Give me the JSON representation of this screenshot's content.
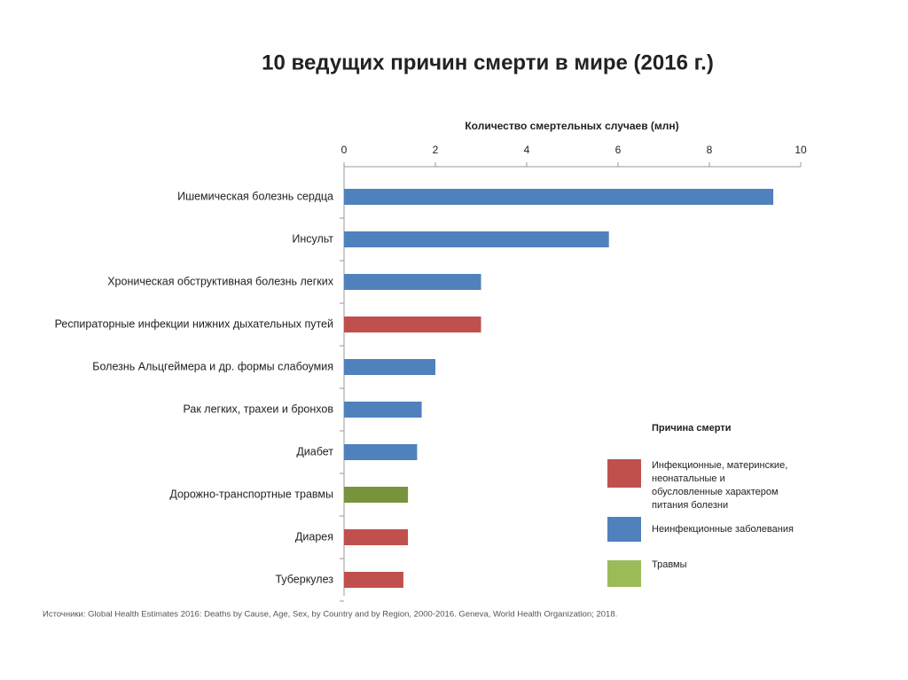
{
  "chart_data": {
    "type": "bar",
    "orientation": "horizontal",
    "title": "10 ведущих причин смерти в мире (2016 г.)",
    "x_label": "Количество смертельных случаев (млн)",
    "categories": [
      "Ишемическая болезнь сердца",
      "Инсульт",
      "Хроническая обструктивная болезнь легких",
      "Респираторные инфекции нижних дыхательных путей",
      "Болезнь Альцгеймера и др. формы слабоумия",
      "Рак легких, трахеи и бронхов",
      "Диабет",
      "Дорожно-транспортные травмы",
      "Диарея",
      "Туберкулез"
    ],
    "series": [
      {
        "name": "Инфекционные, материнские, неонатальные и обусловленные характером питания болезни",
        "color": "#c0504d",
        "values": [
          null,
          null,
          null,
          3.0,
          null,
          null,
          null,
          null,
          1.4,
          1.3
        ]
      },
      {
        "name": "Неинфекционные заболевания",
        "color": "#4f81bd",
        "values": [
          9.4,
          5.8,
          3.0,
          null,
          2.0,
          1.7,
          1.6,
          null,
          null,
          null
        ]
      },
      {
        "name": "Травмы",
        "color": "#77933c",
        "values": [
          null,
          null,
          null,
          null,
          null,
          null,
          null,
          1.4,
          null,
          null
        ]
      }
    ],
    "xlim": [
      0,
      10
    ],
    "xticks": [
      0,
      2,
      4,
      6,
      8,
      10
    ],
    "legend_title": "Причина смерти",
    "source": "Источники: Global Health Estimates 2016: Deaths by Cause, Age, Sex, by Country and by Region, 2000-2016. Geneva, World Health Organization; 2018."
  }
}
